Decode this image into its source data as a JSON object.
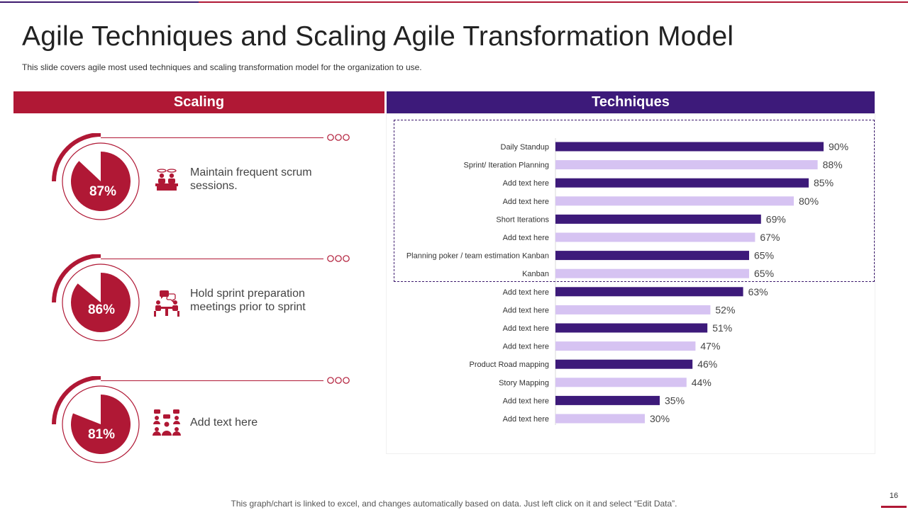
{
  "title": "Agile Techniques and Scaling Agile Transformation Model",
  "subtitle": "This slide covers agile most used techniques and scaling transformation model for the organization to use.",
  "headers": {
    "scaling": "Scaling",
    "techniques": "Techniques"
  },
  "scaling": {
    "items": [
      {
        "percent_label": "87%",
        "value": 87,
        "text": "Maintain frequent scrum sessions.",
        "icon": "scrum-meeting-icon"
      },
      {
        "percent_label": "86%",
        "value": 86,
        "text": "Hold sprint preparation meetings prior to sprint",
        "icon": "sprint-meeting-icon"
      },
      {
        "percent_label": "81%",
        "value": 81,
        "text": "Add text here",
        "icon": "team-icon"
      }
    ]
  },
  "chart_data": {
    "type": "bar",
    "orientation": "horizontal",
    "categories": [
      "Daily Standup",
      "Sprint/ Iteration Planning",
      "Add text here",
      "Add text here",
      "Short Iterations",
      "Add text here",
      "Planning poker / team estimation Kanban",
      "Kanban",
      "Add text here",
      "Add text here",
      "Add text here",
      "Add text here",
      "Product Road mapping",
      "Story Mapping",
      "Add text here",
      "Add text here"
    ],
    "values": [
      90,
      88,
      85,
      80,
      69,
      67,
      65,
      65,
      63,
      52,
      51,
      47,
      46,
      44,
      35,
      30
    ],
    "value_labels": [
      "90%",
      "88%",
      "85%",
      "80%",
      "69%",
      "67%",
      "65%",
      "65%",
      "63%",
      "52%",
      "51%",
      "47%",
      "46%",
      "44%",
      "35%",
      "30%"
    ],
    "xlim": [
      0,
      100
    ],
    "colors": [
      "#3d1a7a",
      "#d6c3f2"
    ],
    "grid": false,
    "legend": "none"
  },
  "colors": {
    "accent_red": "#b01835",
    "accent_purple": "#3d1a7a",
    "light_purple": "#d6c3f2"
  },
  "footer": "This graph/chart is linked to excel, and changes automatically based on data. Just left click on it and select “Edit Data”.",
  "page_number": "16"
}
